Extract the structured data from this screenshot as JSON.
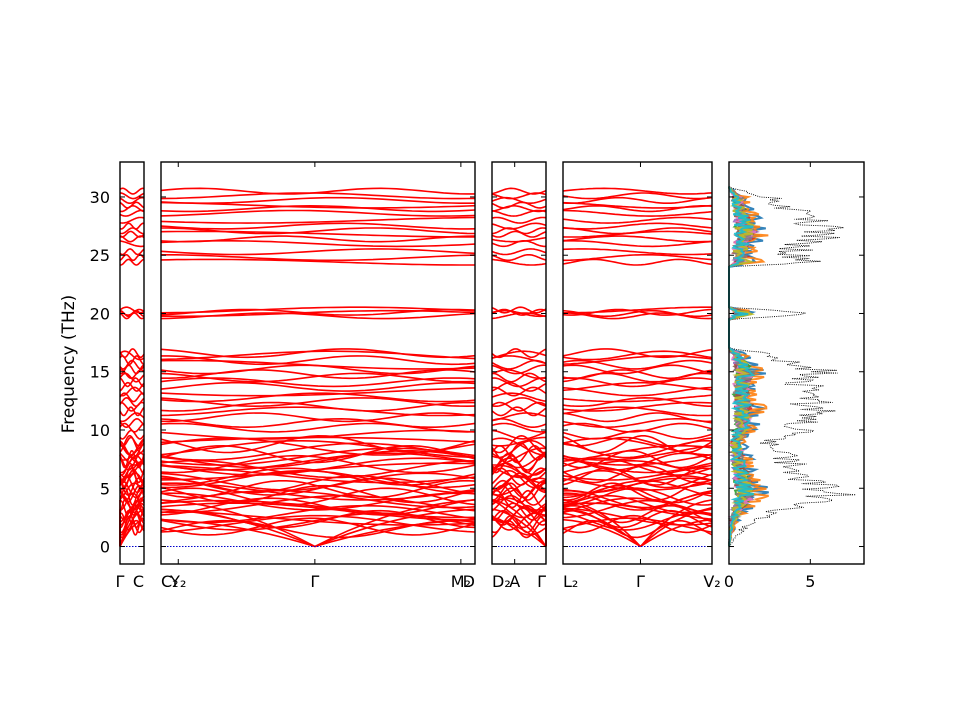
{
  "chart_data": {
    "type": "line",
    "title": "",
    "ylabel": "Frequency (THz)",
    "ylim": [
      -1.5,
      33
    ],
    "yticks": [
      0,
      5,
      10,
      15,
      20,
      25,
      30
    ],
    "band_color": "#ff0000",
    "zero_line_color": "#0000cc",
    "panels": [
      {
        "id": "p1",
        "labels": [
          "Γ",
          "C"
        ],
        "xrange": [
          0,
          1
        ]
      },
      {
        "id": "p2",
        "labels": [
          "C₂",
          "Y₂",
          "Γ",
          "M₂",
          "D"
        ],
        "label_pos": [
          0,
          0.055,
          0.49,
          0.955,
          1
        ],
        "xrange": [
          0,
          1
        ]
      },
      {
        "id": "p3",
        "labels": [
          "D₂",
          "A",
          "Γ"
        ],
        "label_pos": [
          0,
          0.42,
          1
        ],
        "xrange": [
          0,
          1
        ]
      },
      {
        "id": "p4",
        "labels": [
          "L₂",
          "Γ",
          "V₂"
        ],
        "label_pos": [
          0,
          0.52,
          1
        ],
        "xrange": [
          0,
          1
        ]
      }
    ],
    "dos_panel": {
      "xlabel": "",
      "xlim": [
        0,
        8.3
      ],
      "xticks": [
        0,
        5
      ],
      "total_dos_style": "dotted black",
      "projection_colors": [
        "#1f77b4",
        "#ff7f0e",
        "#2ca02c",
        "#d62728",
        "#9467bd",
        "#8c564b",
        "#e377c2",
        "#7f7f7f",
        "#bcbd22",
        "#17becf"
      ],
      "total_dos": [
        {
          "f": 0.0,
          "d": 0.0
        },
        {
          "f": 1.0,
          "d": 0.6
        },
        {
          "f": 2.0,
          "d": 1.6
        },
        {
          "f": 3.0,
          "d": 3.5
        },
        {
          "f": 4.0,
          "d": 6.8
        },
        {
          "f": 4.5,
          "d": 8.0
        },
        {
          "f": 5.0,
          "d": 7.2
        },
        {
          "f": 6.0,
          "d": 6.0
        },
        {
          "f": 7.0,
          "d": 5.0
        },
        {
          "f": 8.0,
          "d": 4.2
        },
        {
          "f": 9.0,
          "d": 3.0
        },
        {
          "f": 10.0,
          "d": 5.6
        },
        {
          "f": 11.0,
          "d": 6.2
        },
        {
          "f": 12.0,
          "d": 7.0
        },
        {
          "f": 13.0,
          "d": 5.5
        },
        {
          "f": 14.0,
          "d": 6.3
        },
        {
          "f": 15.0,
          "d": 7.5
        },
        {
          "f": 16.0,
          "d": 4.5
        },
        {
          "f": 16.7,
          "d": 2.5
        },
        {
          "f": 17.0,
          "d": 0.0
        },
        {
          "f": 19.5,
          "d": 0.0
        },
        {
          "f": 20.0,
          "d": 7.6
        },
        {
          "f": 20.5,
          "d": 0.0
        },
        {
          "f": 24.0,
          "d": 0.0
        },
        {
          "f": 24.5,
          "d": 7.3
        },
        {
          "f": 25.0,
          "d": 5.0
        },
        {
          "f": 26.0,
          "d": 6.0
        },
        {
          "f": 27.0,
          "d": 8.2
        },
        {
          "f": 28.0,
          "d": 6.5
        },
        {
          "f": 29.0,
          "d": 5.0
        },
        {
          "f": 30.0,
          "d": 3.5
        },
        {
          "f": 30.8,
          "d": 0.0
        }
      ]
    }
  }
}
